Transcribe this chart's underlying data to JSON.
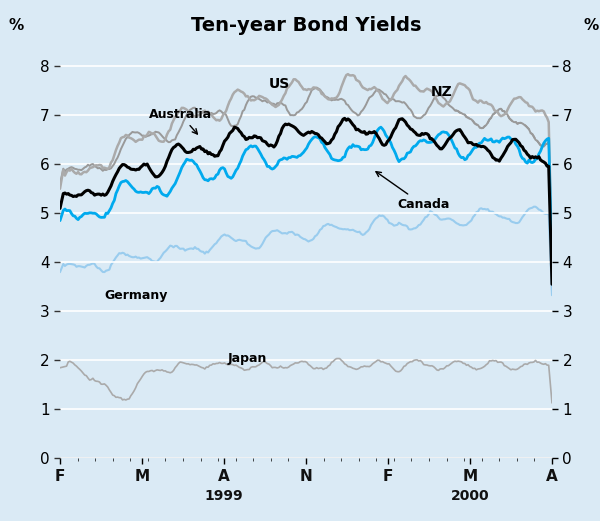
{
  "title": "Ten-year Bond Yields",
  "background_color": "#daeaf5",
  "plot_background_color": "#daeaf5",
  "ylabel_left": "%",
  "ylabel_right": "%",
  "ylim": [
    0,
    8.5
  ],
  "yticks": [
    0,
    1,
    2,
    3,
    4,
    5,
    6,
    7,
    8
  ],
  "x_labels": [
    "F",
    "M",
    "A",
    "N",
    "F",
    "M",
    "A"
  ],
  "n_points": 300,
  "series": {
    "NZ": {
      "color": "#999999",
      "lw": 1.4,
      "zorder": 2
    },
    "US": {
      "color": "#aaaaaa",
      "lw": 1.8,
      "zorder": 3
    },
    "Australia": {
      "color": "#000000",
      "lw": 2.2,
      "zorder": 5
    },
    "Canada": {
      "color": "#00aaee",
      "lw": 2.0,
      "zorder": 4
    },
    "Germany": {
      "color": "#99ccee",
      "lw": 1.5,
      "zorder": 1
    },
    "Japan": {
      "color": "#aaaaaa",
      "lw": 1.2,
      "zorder": 2
    }
  }
}
